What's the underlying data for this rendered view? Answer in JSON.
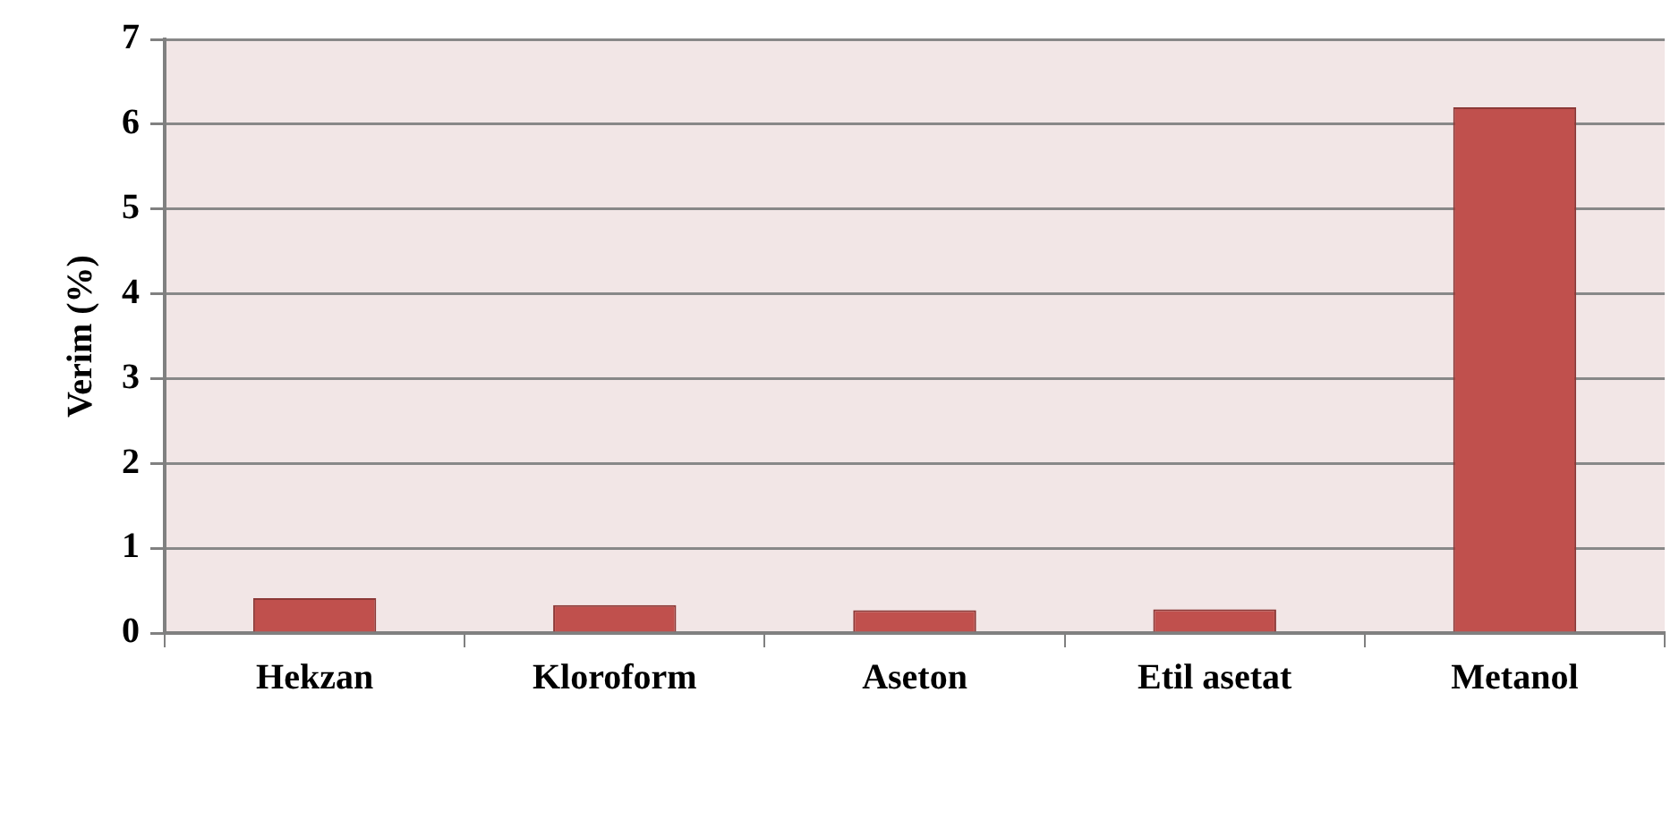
{
  "chart_data": {
    "type": "bar",
    "ylabel": "Verim (%)",
    "categories": [
      "Hekzan",
      "Kloroform",
      "Aseton",
      "Etil asetat",
      "Metanol"
    ],
    "values": [
      0.41,
      0.33,
      0.27,
      0.28,
      6.2
    ],
    "color": "#c0504d",
    "ylim": [
      0,
      7
    ],
    "yticks": [
      0,
      1,
      2,
      3,
      4,
      5,
      6,
      7
    ],
    "grid": "y",
    "legend": false
  }
}
